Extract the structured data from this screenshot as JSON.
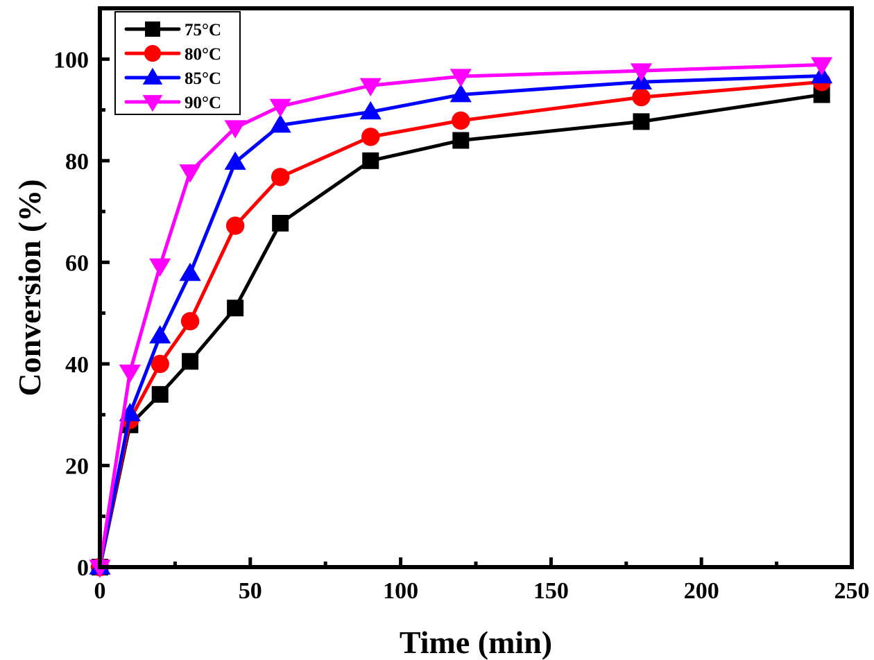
{
  "chart_data": {
    "type": "line",
    "title": "",
    "xlabel": "Time (min)",
    "ylabel": "Conversion (%)",
    "xlim": [
      0,
      250
    ],
    "ylim": [
      0,
      110
    ],
    "xticks": [
      0,
      50,
      100,
      150,
      200,
      250
    ],
    "xtick_labels": [
      "0",
      "50",
      "100",
      "150",
      "200",
      "250"
    ],
    "yticks": [
      0,
      20,
      40,
      60,
      80,
      100
    ],
    "ytick_labels": [
      "0",
      "20",
      "40",
      "60",
      "80",
      "100"
    ],
    "grid": false,
    "legend_position": "top-left",
    "x": [
      0,
      10,
      20,
      30,
      45,
      60,
      90,
      120,
      180,
      240
    ],
    "series": [
      {
        "name": "75°C",
        "color": "#000000",
        "marker": "square",
        "values": [
          0,
          28,
          34,
          40.5,
          51,
          67.7,
          80,
          84,
          87.7,
          93
        ]
      },
      {
        "name": "80°C",
        "color": "#ff0000",
        "marker": "circle",
        "values": [
          0,
          29,
          40,
          48.4,
          67.2,
          76.8,
          84.7,
          87.9,
          92.5,
          95.5
        ]
      },
      {
        "name": "85°C",
        "color": "#0000ff",
        "marker": "triangle-up",
        "values": [
          0,
          30.2,
          45.5,
          57.8,
          79.7,
          87,
          89.6,
          93,
          95.5,
          96.7
        ]
      },
      {
        "name": "90°C",
        "color": "#ff00ff",
        "marker": "triangle-down",
        "values": [
          0,
          38.4,
          59.3,
          77.8,
          86.5,
          90.7,
          94.8,
          96.6,
          97.7,
          98.9
        ]
      }
    ]
  }
}
